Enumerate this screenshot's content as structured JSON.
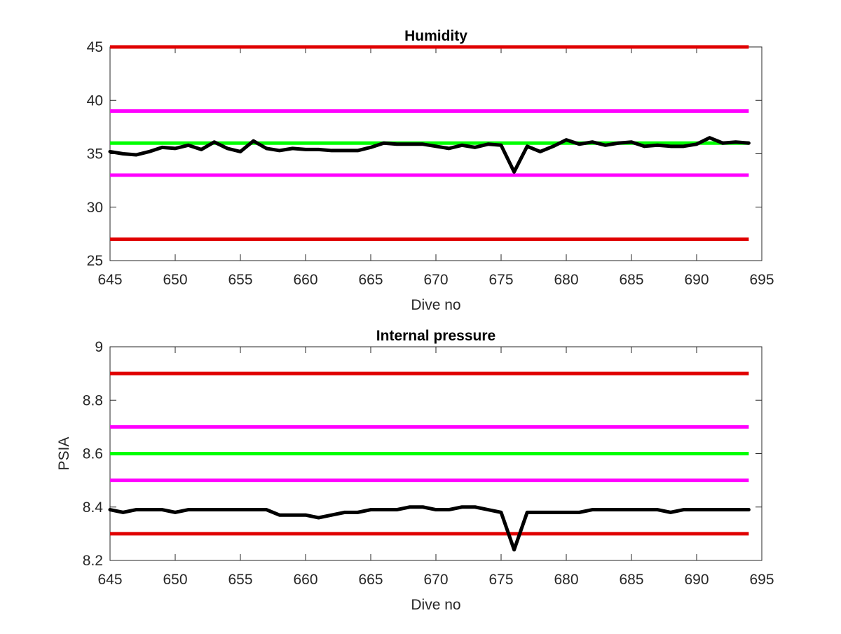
{
  "chart_data": [
    {
      "type": "line",
      "title": "Humidity",
      "xlabel": "Dive no",
      "ylabel": "",
      "xlim": [
        645,
        695
      ],
      "ylim": [
        25,
        45
      ],
      "xticks": [
        "645",
        "650",
        "655",
        "660",
        "665",
        "670",
        "675",
        "680",
        "685",
        "690",
        "695"
      ],
      "yticks": [
        "25",
        "30",
        "35",
        "40",
        "45"
      ],
      "grid": false,
      "reference_lines": [
        {
          "y": 45,
          "color": "#e00000",
          "x_range": [
            645,
            694
          ]
        },
        {
          "y": 39,
          "color": "#ff00ff",
          "x_range": [
            645,
            694
          ]
        },
        {
          "y": 36,
          "color": "#00ff00",
          "x_range": [
            645,
            694
          ]
        },
        {
          "y": 33,
          "color": "#ff00ff",
          "x_range": [
            645,
            694
          ]
        },
        {
          "y": 27,
          "color": "#e00000",
          "x_range": [
            645,
            694
          ]
        }
      ],
      "series": [
        {
          "color": "#000000",
          "x": [
            645,
            646,
            647,
            648,
            649,
            650,
            651,
            652,
            653,
            654,
            655,
            656,
            657,
            658,
            659,
            660,
            661,
            662,
            663,
            664,
            665,
            666,
            667,
            668,
            669,
            670,
            671,
            672,
            673,
            674,
            675,
            676,
            677,
            678,
            679,
            680,
            681,
            682,
            683,
            684,
            685,
            686,
            687,
            688,
            689,
            690,
            691,
            692,
            693,
            694
          ],
          "y": [
            35.2,
            35.0,
            34.9,
            35.2,
            35.6,
            35.5,
            35.8,
            35.4,
            36.1,
            35.5,
            35.2,
            36.2,
            35.5,
            35.3,
            35.5,
            35.4,
            35.4,
            35.3,
            35.3,
            35.3,
            35.6,
            36.0,
            35.9,
            35.9,
            35.9,
            35.7,
            35.5,
            35.8,
            35.6,
            35.9,
            35.8,
            33.3,
            35.7,
            35.2,
            35.7,
            36.3,
            35.9,
            36.1,
            35.8,
            36.0,
            36.1,
            35.7,
            35.8,
            35.7,
            35.7,
            35.9,
            36.5,
            36.0,
            36.1,
            36.0
          ]
        }
      ]
    },
    {
      "type": "line",
      "title": "Internal pressure",
      "xlabel": "Dive no",
      "ylabel": "PSIA",
      "xlim": [
        645,
        695
      ],
      "ylim": [
        8.2,
        9
      ],
      "xticks": [
        "645",
        "650",
        "655",
        "660",
        "665",
        "670",
        "675",
        "680",
        "685",
        "690",
        "695"
      ],
      "yticks": [
        "8.2",
        "8.4",
        "8.6",
        "8.8",
        "9"
      ],
      "grid": false,
      "reference_lines": [
        {
          "y": 8.9,
          "color": "#e00000",
          "x_range": [
            645,
            694
          ]
        },
        {
          "y": 8.7,
          "color": "#ff00ff",
          "x_range": [
            645,
            694
          ]
        },
        {
          "y": 8.6,
          "color": "#00ff00",
          "x_range": [
            645,
            694
          ]
        },
        {
          "y": 8.5,
          "color": "#ff00ff",
          "x_range": [
            645,
            694
          ]
        },
        {
          "y": 8.3,
          "color": "#e00000",
          "x_range": [
            645,
            694
          ]
        }
      ],
      "series": [
        {
          "color": "#000000",
          "x": [
            645,
            646,
            647,
            648,
            649,
            650,
            651,
            652,
            653,
            654,
            655,
            656,
            657,
            658,
            659,
            660,
            661,
            662,
            663,
            664,
            665,
            666,
            667,
            668,
            669,
            670,
            671,
            672,
            673,
            674,
            675,
            676,
            677,
            678,
            679,
            680,
            681,
            682,
            683,
            684,
            685,
            686,
            687,
            688,
            689,
            690,
            691,
            692,
            693,
            694
          ],
          "y": [
            8.39,
            8.38,
            8.39,
            8.39,
            8.39,
            8.38,
            8.39,
            8.39,
            8.39,
            8.39,
            8.39,
            8.39,
            8.39,
            8.37,
            8.37,
            8.37,
            8.36,
            8.37,
            8.38,
            8.38,
            8.39,
            8.39,
            8.39,
            8.4,
            8.4,
            8.39,
            8.39,
            8.4,
            8.4,
            8.39,
            8.38,
            8.24,
            8.38,
            8.38,
            8.38,
            8.38,
            8.38,
            8.39,
            8.39,
            8.39,
            8.39,
            8.39,
            8.39,
            8.38,
            8.39,
            8.39,
            8.39,
            8.39,
            8.39,
            8.39
          ]
        }
      ]
    }
  ]
}
